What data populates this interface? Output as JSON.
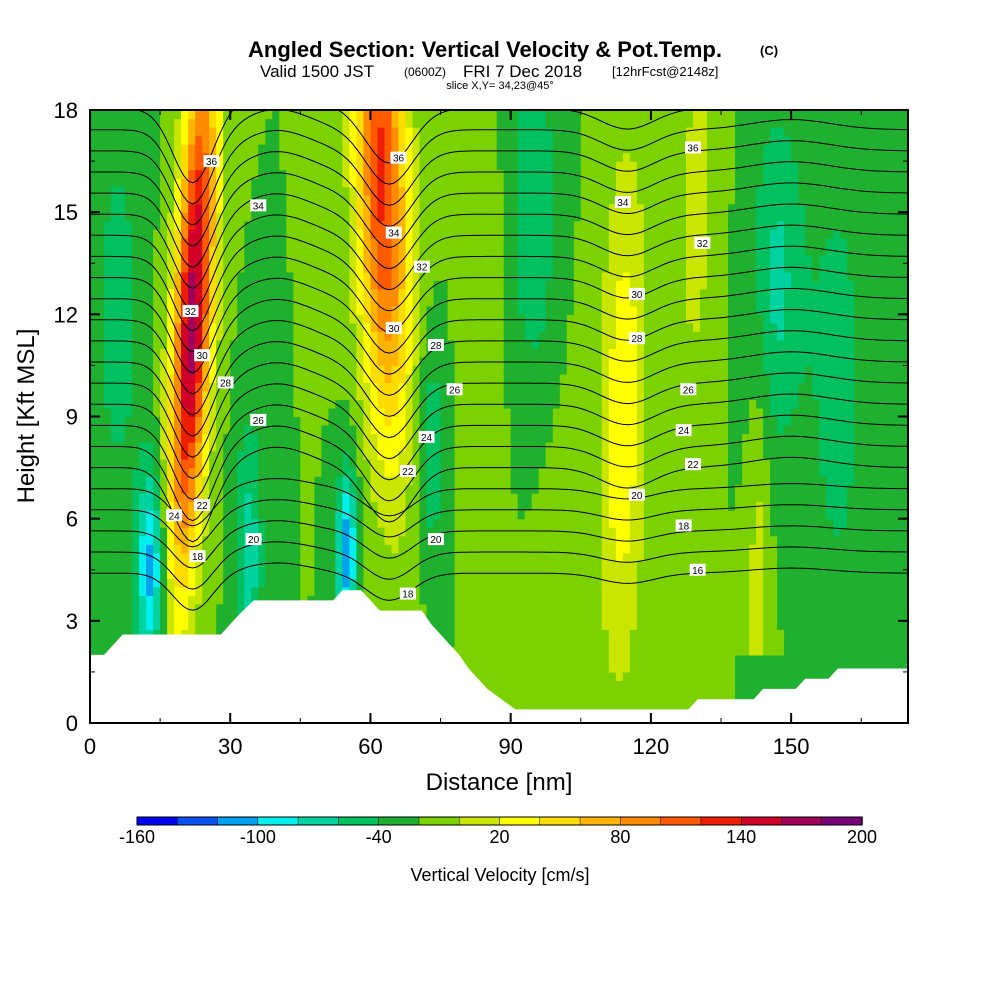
{
  "header": {
    "title": "Angled Section: Vertical Velocity & Pot.Temp.",
    "copyright": "(C)",
    "valid_prefix": "Valid 1500 JST",
    "valid_utc": "(0600Z)",
    "valid_date": "FRI 7 Dec 2018",
    "forecast": "[12hrFcst@2148z]",
    "slice": "slice X,Y= 34,23@45°"
  },
  "chart_data": {
    "type": "heatmap",
    "xlabel": "Distance [nm]",
    "ylabel": "Height [Kft MSL]",
    "xlim": [
      0,
      175
    ],
    "ylim": [
      0,
      18
    ],
    "x_ticks": [
      "0",
      "30",
      "60",
      "90",
      "120",
      "150"
    ],
    "x_tick_values": [
      0,
      30,
      60,
      90,
      120,
      150
    ],
    "y_ticks": [
      "0",
      "3",
      "6",
      "9",
      "12",
      "15",
      "18"
    ],
    "y_tick_values": [
      0,
      3,
      6,
      9,
      12,
      15,
      18
    ],
    "colorbar": {
      "title": "Vertical Velocity [cm/s]",
      "labels": [
        "-160",
        "-100",
        "-40",
        "20",
        "80",
        "140",
        "200"
      ],
      "label_values": [
        -160,
        -100,
        -40,
        20,
        80,
        140,
        200
      ],
      "min": -160,
      "max": 200,
      "step": 20,
      "colors": [
        "#0000f0",
        "#0a50f0",
        "#00a0f0",
        "#00f0f0",
        "#00d2a0",
        "#00c060",
        "#20b030",
        "#7bd200",
        "#c8e600",
        "#ffff00",
        "#ffdc00",
        "#ffb400",
        "#ff8c00",
        "#ff5a00",
        "#f01e00",
        "#d20028",
        "#a0005a",
        "#780078"
      ]
    },
    "background_velocity": -20,
    "plumes": [
      {
        "x_bottom": 18,
        "x_top": 24,
        "y_start": 0,
        "y_peak": 12,
        "peak": 190,
        "width": 4
      },
      {
        "x_bottom": 66,
        "x_top": 62,
        "y_start": 0,
        "y_peak": 16,
        "peak": 145,
        "width": 5.5
      },
      {
        "x_bottom": 113,
        "x_top": 115,
        "y_start": 0,
        "y_peak": 9,
        "peak": 55,
        "width": 5
      },
      {
        "x_bottom": 128,
        "x_top": 130,
        "y_start": 0,
        "y_peak": 15,
        "peak": 25,
        "width": 5
      },
      {
        "x_bottom": 85,
        "x_top": 83,
        "y_start": 0,
        "y_peak": 13,
        "peak": 20,
        "width": 4
      },
      {
        "x_bottom": 143,
        "x_top": 143,
        "y_start": 2,
        "y_peak": 3.5,
        "peak": 30,
        "width": 2.5
      },
      {
        "x_bottom": 100,
        "x_top": 100,
        "y_start": 0,
        "y_peak": 6,
        "peak": 5,
        "width": 6
      }
    ],
    "downdrafts": [
      {
        "x": 13,
        "y": 4.5,
        "value": -90,
        "width": 3,
        "depth": 3
      },
      {
        "x": 55,
        "y": 5,
        "value": -95,
        "width": 2.2,
        "depth": 2.5
      },
      {
        "x": 34,
        "y": 5,
        "value": -50,
        "width": 3,
        "depth": 4
      },
      {
        "x": 73,
        "y": 8,
        "value": -40,
        "width": 3,
        "depth": 3
      },
      {
        "x": 147,
        "y": 13,
        "value": -45,
        "width": 6,
        "depth": 5
      },
      {
        "x": 95,
        "y": 15,
        "value": -40,
        "width": 5,
        "depth": 5
      },
      {
        "x": 160,
        "y": 10,
        "value": -30,
        "width": 6,
        "depth": 7
      },
      {
        "x": 6,
        "y": 12,
        "value": -30,
        "width": 5,
        "depth": 6
      }
    ],
    "terrain_profile": [
      [
        0,
        2
      ],
      [
        3,
        2
      ],
      [
        5,
        2.3
      ],
      [
        7,
        2.6
      ],
      [
        28,
        2.6
      ],
      [
        30,
        2.9
      ],
      [
        32,
        3.2
      ],
      [
        35,
        3.6
      ],
      [
        52,
        3.6
      ],
      [
        54,
        3.9
      ],
      [
        58,
        3.9
      ],
      [
        60,
        3.6
      ],
      [
        62,
        3.3
      ],
      [
        71,
        3.3
      ],
      [
        73,
        2.9
      ],
      [
        75,
        2.6
      ],
      [
        77,
        2.3
      ],
      [
        79,
        2.0
      ],
      [
        81,
        1.6
      ],
      [
        83,
        1.3
      ],
      [
        85,
        1.0
      ],
      [
        87,
        0.8
      ],
      [
        89,
        0.6
      ],
      [
        91,
        0.4
      ],
      [
        128,
        0.4
      ],
      [
        130,
        0.7
      ],
      [
        142,
        0.7
      ],
      [
        144,
        1.0
      ],
      [
        151,
        1.0
      ],
      [
        153,
        1.3
      ],
      [
        158,
        1.3
      ],
      [
        160,
        1.6
      ],
      [
        175,
        1.6
      ]
    ],
    "isentropes": {
      "levels": [
        16,
        17,
        18,
        19,
        20,
        21,
        22,
        23,
        24,
        25,
        26,
        27,
        28,
        29,
        30,
        31,
        32,
        33,
        34,
        35,
        36,
        37,
        38
      ],
      "labels": [
        {
          "text": "36",
          "x": 26,
          "y": 16.5
        },
        {
          "text": "34",
          "x": 36,
          "y": 15.2
        },
        {
          "text": "32",
          "x": 21.5,
          "y": 12.1
        },
        {
          "text": "30",
          "x": 24,
          "y": 10.8
        },
        {
          "text": "28",
          "x": 29,
          "y": 10
        },
        {
          "text": "26",
          "x": 36,
          "y": 8.9
        },
        {
          "text": "24",
          "x": 18,
          "y": 6.1
        },
        {
          "text": "22",
          "x": 24,
          "y": 6.4
        },
        {
          "text": "20",
          "x": 35,
          "y": 5.4
        },
        {
          "text": "18",
          "x": 23,
          "y": 4.9
        },
        {
          "text": "36",
          "x": 66,
          "y": 16.6
        },
        {
          "text": "34",
          "x": 65,
          "y": 14.4
        },
        {
          "text": "32",
          "x": 71,
          "y": 13.4
        },
        {
          "text": "30",
          "x": 65,
          "y": 11.6
        },
        {
          "text": "28",
          "x": 74,
          "y": 11.1
        },
        {
          "text": "26",
          "x": 78,
          "y": 9.8
        },
        {
          "text": "24",
          "x": 72,
          "y": 8.4
        },
        {
          "text": "22",
          "x": 68,
          "y": 7.4
        },
        {
          "text": "20",
          "x": 74,
          "y": 5.4
        },
        {
          "text": "18",
          "x": 68,
          "y": 3.8
        },
        {
          "text": "16",
          "x": 130,
          "y": 4.5
        },
        {
          "text": "18",
          "x": 127,
          "y": 5.8
        },
        {
          "text": "20",
          "x": 117,
          "y": 6.7
        },
        {
          "text": "22",
          "x": 129,
          "y": 7.6
        },
        {
          "text": "24",
          "x": 127,
          "y": 8.6
        },
        {
          "text": "26",
          "x": 128,
          "y": 9.8
        },
        {
          "text": "28",
          "x": 117,
          "y": 11.3
        },
        {
          "text": "30",
          "x": 117,
          "y": 12.6
        },
        {
          "text": "32",
          "x": 131,
          "y": 14.1
        },
        {
          "text": "34",
          "x": 114,
          "y": 15.3
        },
        {
          "text": "36",
          "x": 129,
          "y": 16.9
        }
      ]
    }
  }
}
